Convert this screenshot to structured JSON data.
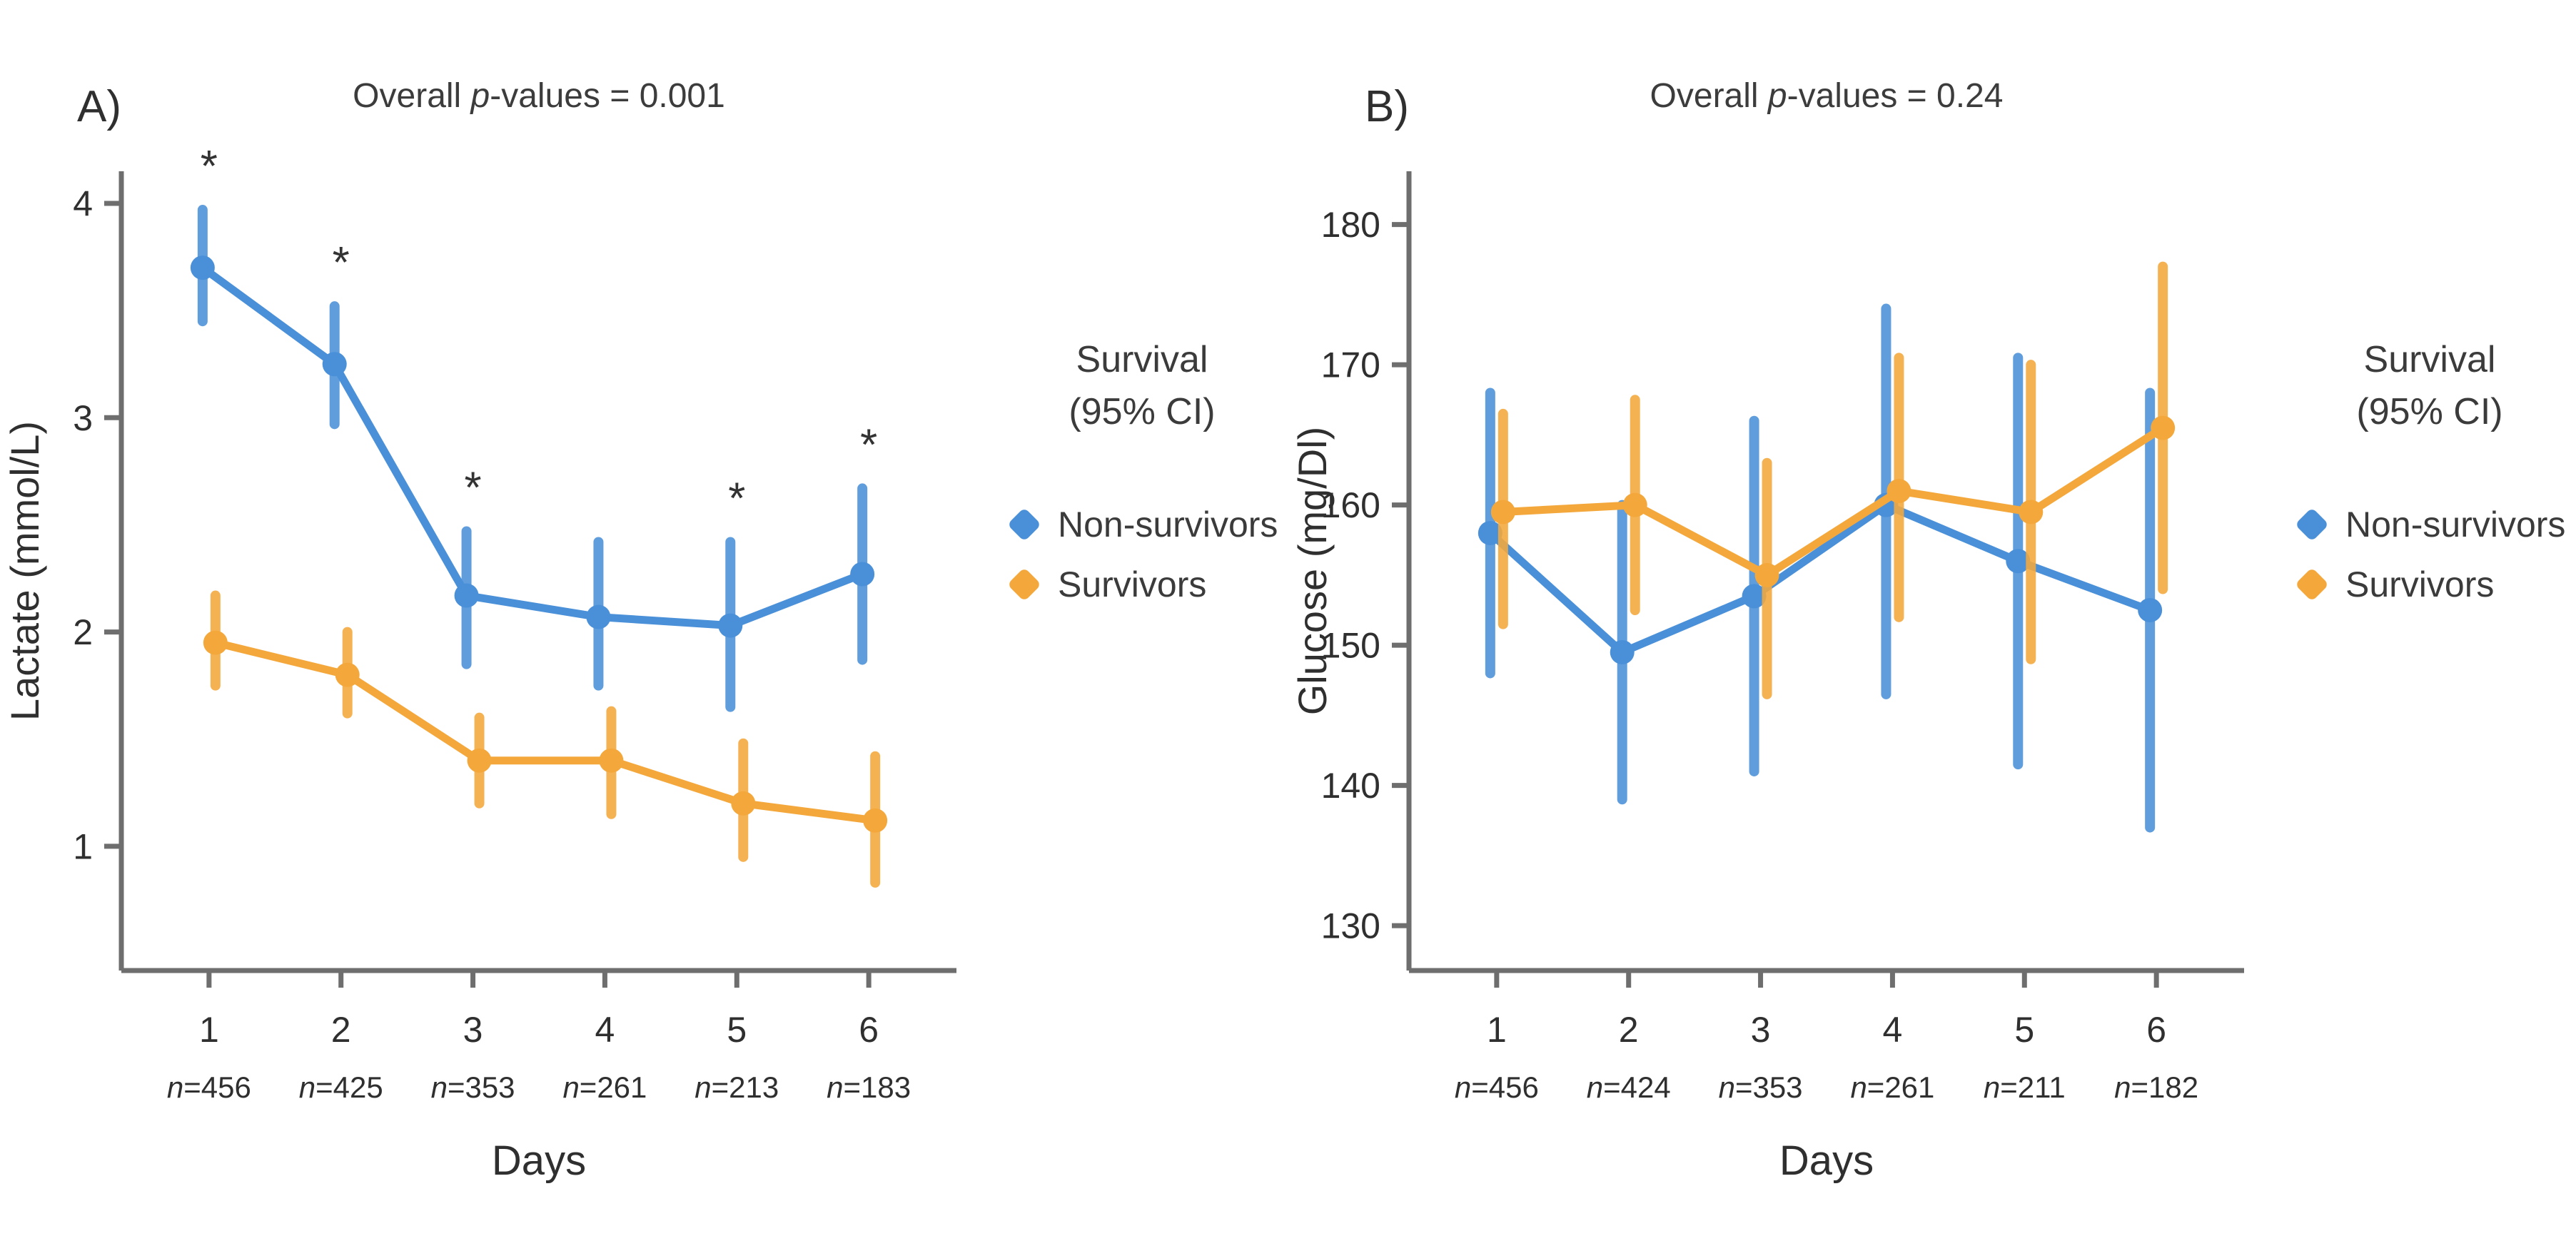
{
  "legend": {
    "title_line1": "Survival",
    "title_line2": "(95% CI)",
    "items": [
      {
        "label": "Non-survivors",
        "color": "#4a90d9"
      },
      {
        "label": "Survivors",
        "color": "#f4a83c"
      }
    ]
  },
  "chart_data": [
    {
      "type": "line",
      "panel_label": "A)",
      "title_parts": [
        "Overall ",
        "p",
        "-values = 0.001"
      ],
      "xlabel": "Days",
      "ylabel": "Lactate (mmol/L)",
      "x": [
        1,
        2,
        3,
        4,
        5,
        6
      ],
      "x_n_labels": [
        "n=456",
        "n=425",
        "n=353",
        "n=261",
        "n=213",
        "n=183"
      ],
      "ylim": [
        0.42,
        4.15
      ],
      "yticks": [
        1,
        2,
        3,
        4
      ],
      "grid": false,
      "legend_position": "right",
      "series": [
        {
          "name": "Non-survivors",
          "color": "#4a90d9",
          "values": [
            3.7,
            3.25,
            2.17,
            2.07,
            2.03,
            2.27
          ],
          "ci_low": [
            3.45,
            2.97,
            1.85,
            1.75,
            1.65,
            1.87
          ],
          "ci_high": [
            3.97,
            3.52,
            2.47,
            2.42,
            2.42,
            2.67
          ]
        },
        {
          "name": "Survivors",
          "color": "#f4a83c",
          "values": [
            1.95,
            1.8,
            1.4,
            1.4,
            1.2,
            1.12
          ],
          "ci_low": [
            1.75,
            1.62,
            1.2,
            1.15,
            0.95,
            0.83
          ],
          "ci_high": [
            2.17,
            2.0,
            1.6,
            1.63,
            1.48,
            1.42
          ]
        }
      ],
      "sig_symbol": "*",
      "sig_days": [
        1,
        2,
        3,
        5,
        6
      ]
    },
    {
      "type": "line",
      "panel_label": "B)",
      "title_parts": [
        "Overall ",
        "p",
        "-values = 0.24"
      ],
      "xlabel": "Days",
      "ylabel": "Glucose (mg/Dl)",
      "x": [
        1,
        2,
        3,
        4,
        5,
        6
      ],
      "x_n_labels": [
        "n=456",
        "n=424",
        "n=353",
        "n=261",
        "n=211",
        "n=182"
      ],
      "ylim": [
        126.8,
        183.8
      ],
      "yticks": [
        130,
        140,
        150,
        160,
        170,
        180
      ],
      "grid": false,
      "legend_position": "right",
      "series": [
        {
          "name": "Non-survivors",
          "color": "#4a90d9",
          "values": [
            158,
            149.5,
            153.5,
            160,
            156,
            152.5
          ],
          "ci_low": [
            148,
            139,
            141,
            146.5,
            141.5,
            137
          ],
          "ci_high": [
            168,
            160,
            166,
            174,
            170.5,
            168
          ]
        },
        {
          "name": "Survivors",
          "color": "#f4a83c",
          "values": [
            159.5,
            160,
            155,
            161,
            159.5,
            165.5
          ],
          "ci_low": [
            151.5,
            152.5,
            146.5,
            152,
            149,
            154
          ],
          "ci_high": [
            166.5,
            167.5,
            163,
            170.5,
            170,
            177
          ]
        }
      ],
      "sig_symbol": "*",
      "sig_days": []
    }
  ]
}
